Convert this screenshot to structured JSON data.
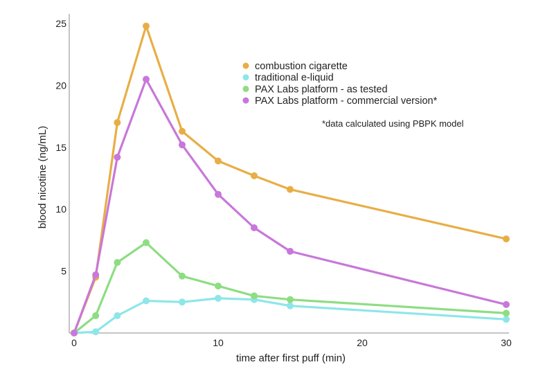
{
  "chart_data": {
    "type": "line",
    "xlabel": "time after first puff (min)",
    "ylabel": "blood nicotine (ng/mL)",
    "xlim": [
      0,
      30
    ],
    "ylim": [
      0,
      25
    ],
    "x_ticks": [
      "0",
      "10",
      "20",
      "30"
    ],
    "y_ticks": [
      "5",
      "10",
      "15",
      "20",
      "25"
    ],
    "x_tick_values": [
      0,
      10,
      20,
      30
    ],
    "y_tick_values": [
      5,
      10,
      15,
      20,
      25
    ],
    "grid": false,
    "legend_position": "top-right",
    "note": "*data calculated using PBPK model",
    "series": [
      {
        "name": "combustion cigarette",
        "color": "#E8AE45",
        "x": [
          0,
          1.5,
          3,
          5,
          7.5,
          10,
          12.5,
          15,
          30
        ],
        "y": [
          0,
          4.5,
          17.0,
          24.8,
          16.3,
          13.9,
          12.7,
          11.6,
          7.6
        ]
      },
      {
        "name": "traditional e-liquid",
        "color": "#8EE6E8",
        "x": [
          0,
          1.5,
          3,
          5,
          7.5,
          10,
          12.5,
          15,
          30
        ],
        "y": [
          0,
          0.1,
          1.4,
          2.6,
          2.5,
          2.8,
          2.7,
          2.2,
          1.1
        ]
      },
      {
        "name": "PAX Labs platform - as tested",
        "color": "#8EDD83",
        "x": [
          0,
          1.5,
          3,
          5,
          7.5,
          10,
          12.5,
          15,
          30
        ],
        "y": [
          0,
          1.4,
          5.7,
          7.3,
          4.6,
          3.8,
          3.0,
          2.7,
          1.6
        ]
      },
      {
        "name": "PAX Labs platform - commercial version*",
        "color": "#C877DA",
        "x": [
          0,
          1.5,
          3,
          5,
          7.5,
          10,
          12.5,
          15,
          30
        ],
        "y": [
          0,
          4.7,
          14.2,
          20.5,
          15.2,
          11.2,
          8.5,
          6.6,
          2.3
        ]
      }
    ]
  }
}
